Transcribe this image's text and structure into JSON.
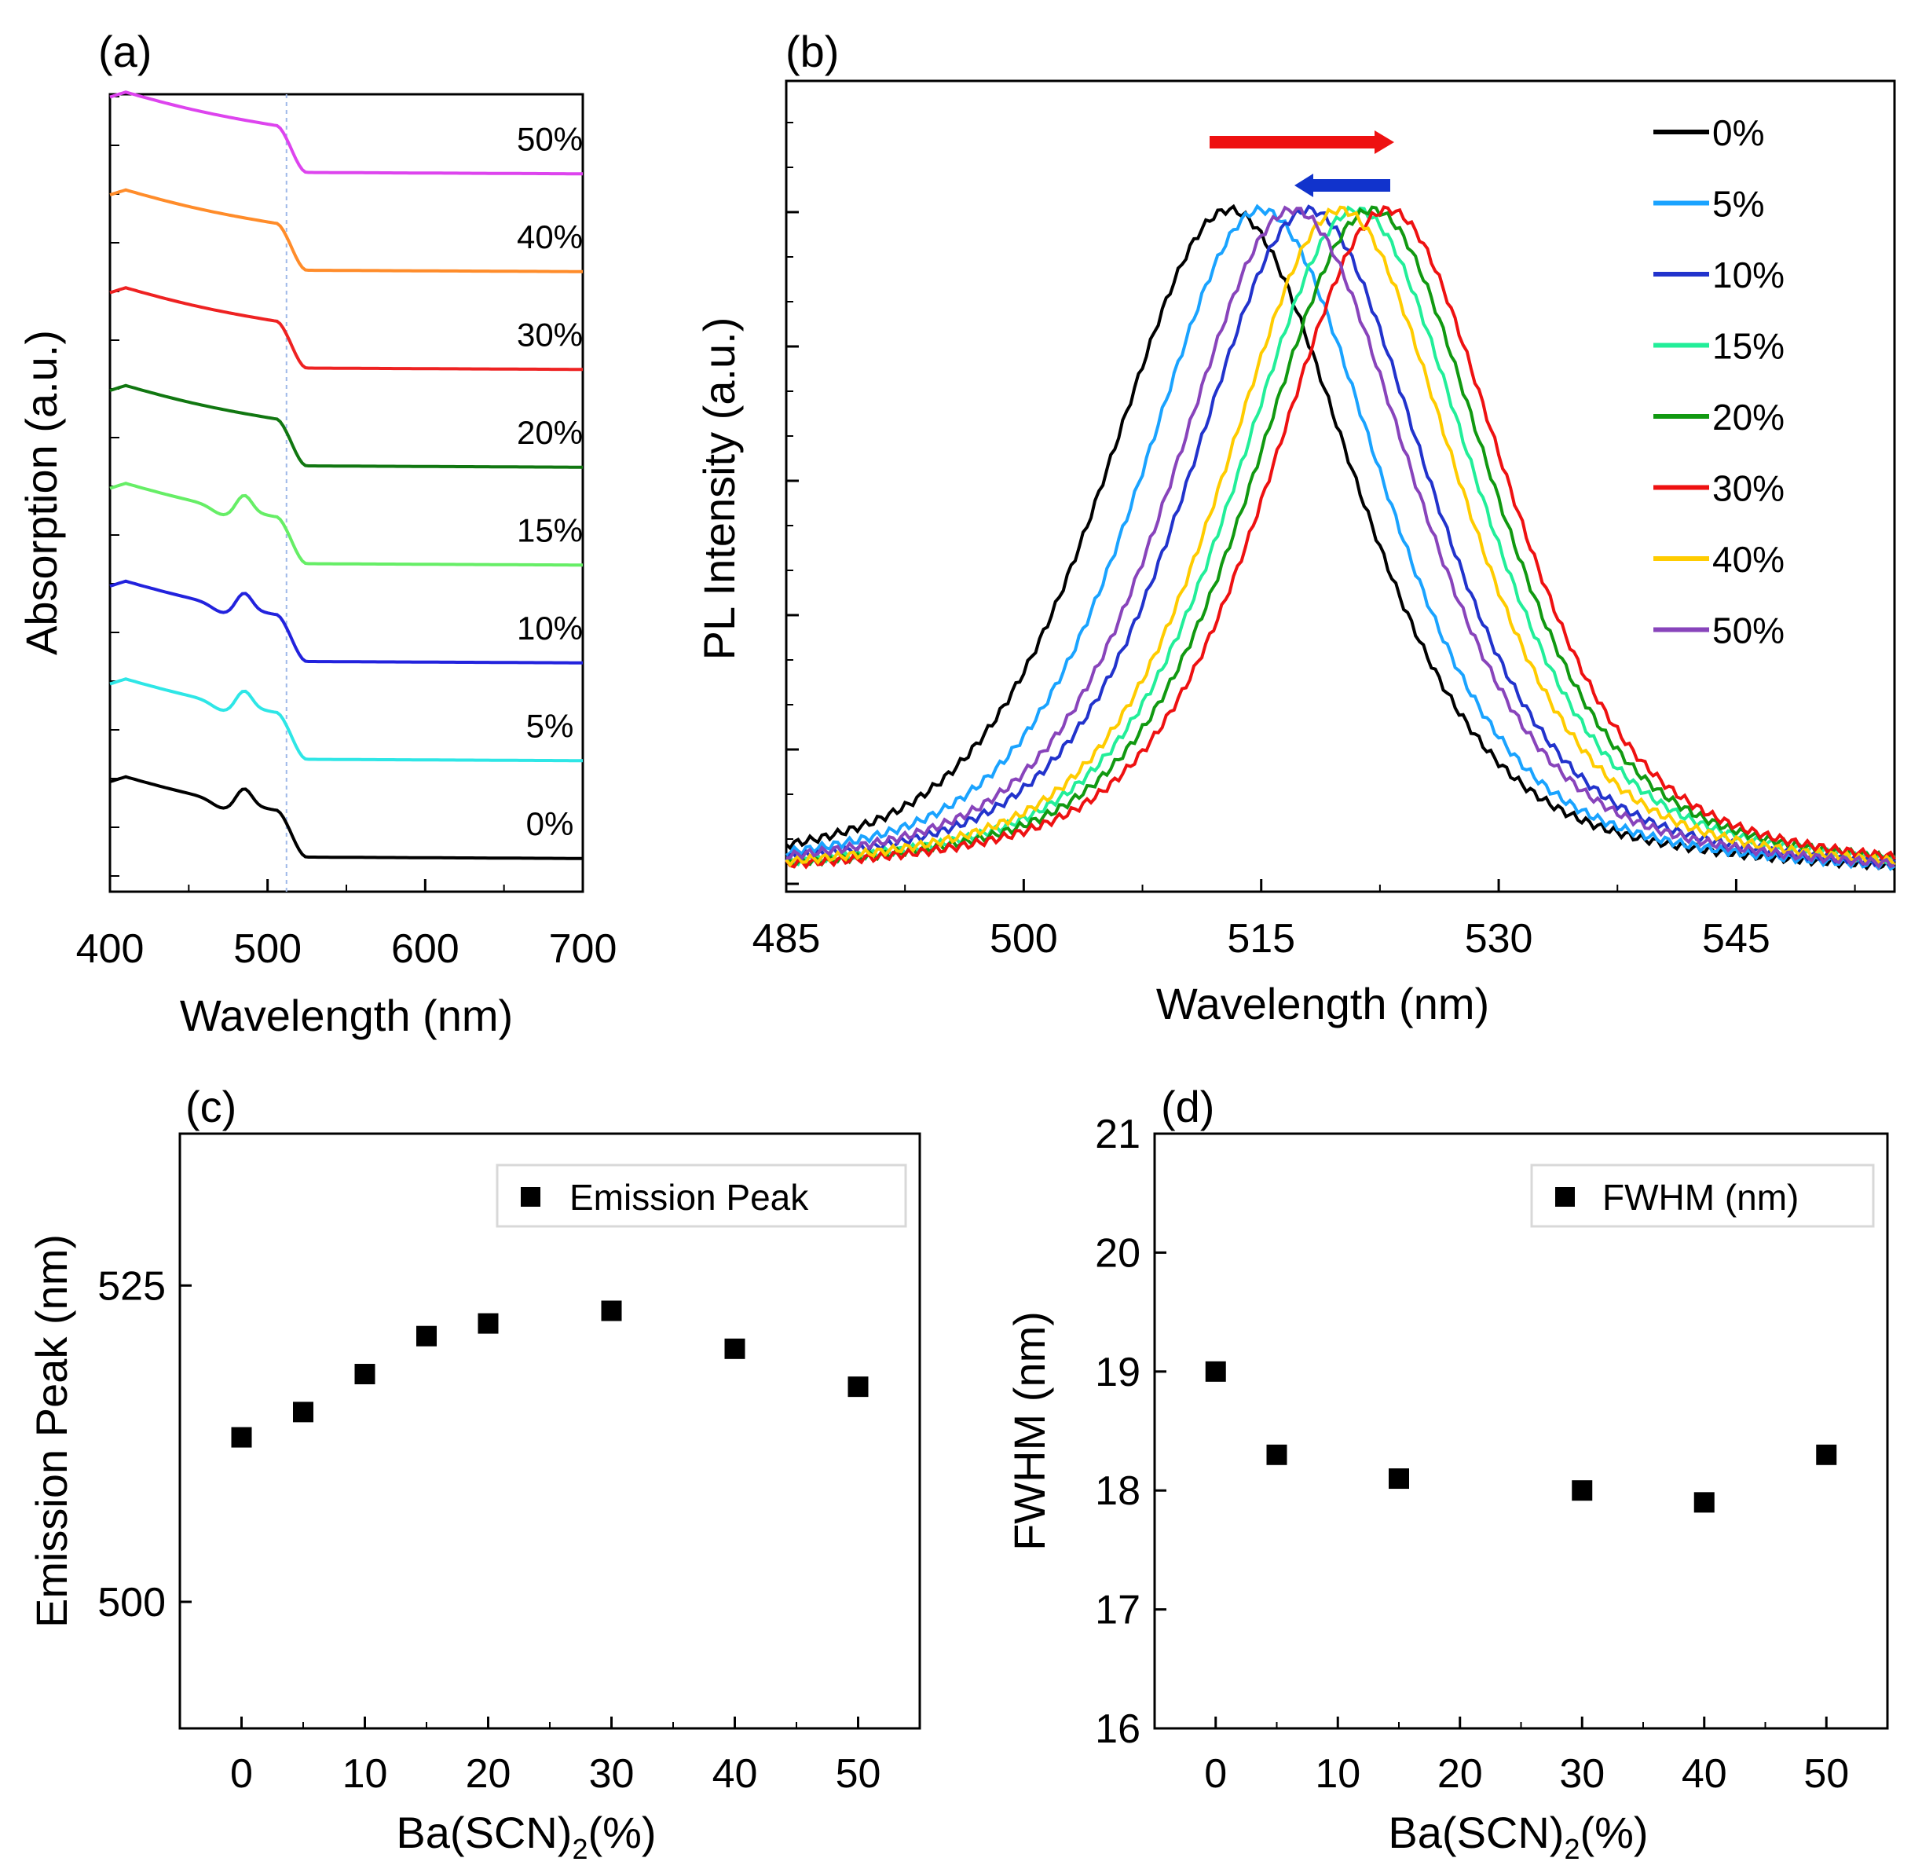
{
  "chart_data": [
    {
      "panel": "(a)",
      "type": "line",
      "xlabel": "Wavelength (nm)",
      "ylabel": "Absorption (a.u.)",
      "xlim": [
        400,
        700
      ],
      "xticks": [
        "400",
        "500",
        "600",
        "700"
      ],
      "y_tick_labels": "none",
      "reference_line_x": 512,
      "series": [
        {
          "name": "0%",
          "label": "0%",
          "color": "#000000",
          "offset": 0,
          "has_exciton": true
        },
        {
          "name": "5%",
          "label": "5%",
          "color": "#2ee6e6",
          "offset": 1,
          "has_exciton": true
        },
        {
          "name": "10%",
          "label": "10%",
          "color": "#2222dd",
          "offset": 2,
          "has_exciton": true
        },
        {
          "name": "15%",
          "label": "15%",
          "color": "#66ee66",
          "offset": 3,
          "has_exciton": true
        },
        {
          "name": "20%",
          "label": "20%",
          "color": "#117711",
          "offset": 4,
          "has_exciton": false
        },
        {
          "name": "30%",
          "label": "30%",
          "color": "#ee2222",
          "offset": 5,
          "has_exciton": false
        },
        {
          "name": "40%",
          "label": "40%",
          "color": "#ff8c2a",
          "offset": 6,
          "has_exciton": false
        },
        {
          "name": "50%",
          "label": "50%",
          "color": "#dd44ee",
          "offset": 7,
          "has_exciton": false
        }
      ]
    },
    {
      "panel": "(b)",
      "type": "line",
      "xlabel": "Wavelength (nm)",
      "ylabel": "PL Intensity (a.u.)",
      "xlim": [
        485,
        555
      ],
      "xticks": [
        "485",
        "500",
        "515",
        "530",
        "545"
      ],
      "y_tick_labels": "none",
      "legend_position": "top-right",
      "annotations": [
        "red arrow pointing right (red shift)",
        "blue arrow pointing left (blue shift)"
      ],
      "series": [
        {
          "name": "0%",
          "peak": 513,
          "fwhm": 19.0,
          "color": "#000000"
        },
        {
          "name": "5%",
          "peak": 515,
          "fwhm": 18.3,
          "color": "#1aa3ff"
        },
        {
          "name": "10%",
          "peak": 518,
          "fwhm": 18.2,
          "color": "#2233cc"
        },
        {
          "name": "15%",
          "peak": 521,
          "fwhm": 18.1,
          "color": "#22ee99"
        },
        {
          "name": "20%",
          "peak": 522,
          "fwhm": 18.1,
          "color": "#119911"
        },
        {
          "name": "30%",
          "peak": 523,
          "fwhm": 18.0,
          "color": "#ee1111"
        },
        {
          "name": "40%",
          "peak": 520,
          "fwhm": 17.9,
          "color": "#ffcc00"
        },
        {
          "name": "50%",
          "peak": 517,
          "fwhm": 18.3,
          "color": "#8844bb"
        }
      ]
    },
    {
      "panel": "(c)",
      "type": "scatter",
      "xlabel_main": "Ba(SCN)",
      "xlabel_sub": "2",
      "xlabel_tail": "(%)",
      "ylabel": "Emission Peak (nm)",
      "xlim": [
        -5,
        55
      ],
      "ylim": [
        490,
        537
      ],
      "xticks": [
        "0",
        "10",
        "20",
        "30",
        "40",
        "50"
      ],
      "yticks": [
        "500",
        "525"
      ],
      "legend": "Emission Peak",
      "legend_position": "top-right",
      "x": [
        0,
        5,
        10,
        15,
        20,
        30,
        40,
        50
      ],
      "y": [
        513,
        515,
        518,
        521,
        522,
        523,
        520,
        517
      ]
    },
    {
      "panel": "(d)",
      "type": "scatter",
      "xlabel_main": "Ba(SCN)",
      "xlabel_sub": "2",
      "xlabel_tail": "(%)",
      "ylabel": "FWHM (nm)",
      "xlim": [
        -5,
        55
      ],
      "ylim": [
        16,
        21
      ],
      "xticks": [
        "0",
        "10",
        "20",
        "30",
        "40",
        "50"
      ],
      "yticks": [
        "16",
        "17",
        "18",
        "19",
        "20",
        "21"
      ],
      "legend": "FWHM (nm)",
      "legend_position": "top-right",
      "x": [
        0,
        5,
        15,
        30,
        40,
        50
      ],
      "y": [
        19.0,
        18.3,
        18.1,
        18.0,
        17.9,
        18.3
      ]
    }
  ]
}
